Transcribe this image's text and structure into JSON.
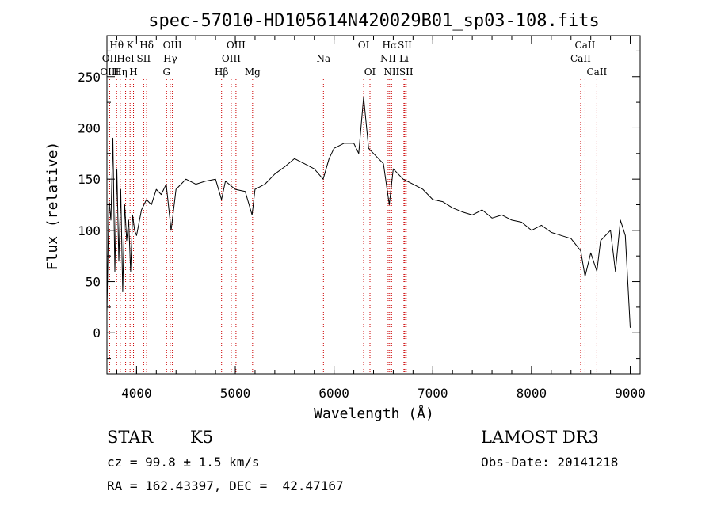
{
  "chart_data": {
    "type": "line",
    "title": "spec-57010-HD105614N420029B01_sp03-108.fits",
    "xlabel": "Wavelength (Å)",
    "ylabel": "Flux (relative)",
    "xlim": [
      3700,
      9100
    ],
    "ylim": [
      -40,
      290
    ],
    "xticks": [
      4000,
      5000,
      6000,
      7000,
      8000,
      9000
    ],
    "yticks": [
      0,
      50,
      100,
      150,
      200,
      250
    ],
    "grid": false,
    "line_color": "#000000",
    "marker_color": "#cc0000",
    "series": [
      {
        "x": [
          3700,
          3720,
          3740,
          3760,
          3780,
          3800,
          3820,
          3840,
          3860,
          3880,
          3900,
          3920,
          3940,
          3960,
          3980,
          4000,
          4050,
          4100,
          4150,
          4200,
          4250,
          4300,
          4350,
          4400,
          4450,
          4500,
          4600,
          4700,
          4800,
          4860,
          4900,
          5000,
          5100,
          5170,
          5200,
          5300,
          5400,
          5500,
          5600,
          5700,
          5800,
          5890,
          5950,
          6000,
          6100,
          6200,
          6250,
          6300,
          6350,
          6400,
          6500,
          6560,
          6600,
          6700,
          6800,
          6900,
          7000,
          7100,
          7200,
          7300,
          7400,
          7500,
          7600,
          7700,
          7800,
          7900,
          8000,
          8100,
          8200,
          8300,
          8400,
          8498,
          8542,
          8600,
          8662,
          8700,
          8800,
          8850,
          8900,
          8950,
          9000
        ],
        "y": [
          20,
          130,
          110,
          190,
          60,
          160,
          70,
          140,
          40,
          125,
          90,
          110,
          60,
          115,
          100,
          95,
          120,
          130,
          125,
          140,
          135,
          145,
          100,
          140,
          145,
          150,
          145,
          148,
          150,
          130,
          148,
          140,
          138,
          115,
          140,
          145,
          155,
          162,
          170,
          165,
          160,
          150,
          170,
          180,
          185,
          185,
          175,
          230,
          180,
          175,
          165,
          125,
          160,
          150,
          145,
          140,
          130,
          128,
          122,
          118,
          115,
          120,
          112,
          115,
          110,
          108,
          100,
          105,
          98,
          95,
          92,
          80,
          55,
          78,
          60,
          90,
          100,
          60,
          110,
          95,
          5
        ]
      }
    ],
    "spectral_lines": [
      {
        "label": "OII",
        "x": 3727,
        "row": 1
      },
      {
        "label": "OIII",
        "x": 3727,
        "row": 2
      },
      {
        "label": "Hθ",
        "x": 3798,
        "row": 0
      },
      {
        "label": "Hη",
        "x": 3835,
        "row": 2
      },
      {
        "label": "HeI",
        "x": 3889,
        "row": 1
      },
      {
        "label": "K",
        "x": 3934,
        "row": 0
      },
      {
        "label": "H",
        "x": 3969,
        "row": 2
      },
      {
        "label": "SII",
        "x": 4072,
        "row": 1
      },
      {
        "label": "Hδ",
        "x": 4102,
        "row": 0
      },
      {
        "label": "OIII",
        "x": 4363,
        "row": 0
      },
      {
        "label": "Hγ",
        "x": 4341,
        "row": 1
      },
      {
        "label": "G",
        "x": 4304,
        "row": 2
      },
      {
        "label": "Hβ",
        "x": 4861,
        "row": 2
      },
      {
        "label": "OIII",
        "x": 5007,
        "row": 0
      },
      {
        "label": "OIII",
        "x": 4959,
        "row": 1
      },
      {
        "label": "Mg",
        "x": 5175,
        "row": 2
      },
      {
        "label": "Na",
        "x": 5893,
        "row": 1
      },
      {
        "label": "OI",
        "x": 6300,
        "row": 0
      },
      {
        "label": "OI",
        "x": 6364,
        "row": 2
      },
      {
        "label": "Hα",
        "x": 6563,
        "row": 0
      },
      {
        "label": "NII",
        "x": 6548,
        "row": 1
      },
      {
        "label": "NII",
        "x": 6583,
        "row": 2
      },
      {
        "label": "SII",
        "x": 6717,
        "row": 0
      },
      {
        "label": "Li",
        "x": 6708,
        "row": 1
      },
      {
        "label": "SII",
        "x": 6731,
        "row": 2
      },
      {
        "label": "CaII",
        "x": 8542,
        "row": 0
      },
      {
        "label": "CaII",
        "x": 8498,
        "row": 1
      },
      {
        "label": "CaII",
        "x": 8662,
        "row": 2
      }
    ]
  },
  "info": {
    "object_class": "STAR",
    "subclass": "K5",
    "survey": "LAMOST DR3",
    "redshift": "cz = 99.8 ± 1.5 km/s",
    "obs_date": "Obs-Date: 20141218",
    "coords": "RA = 162.43397, DEC =  42.47167"
  }
}
